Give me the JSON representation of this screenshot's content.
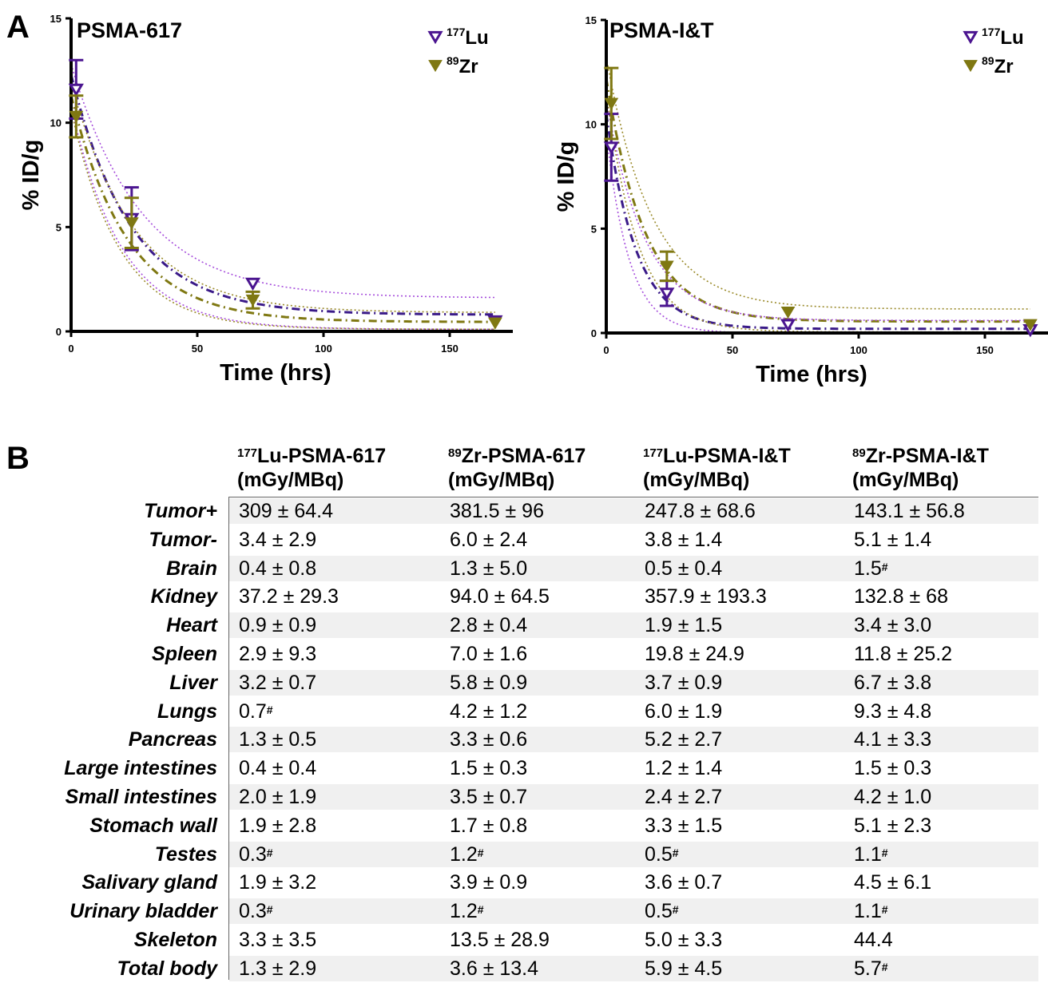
{
  "panels": {
    "a": "A",
    "b": "B"
  },
  "chart_data": [
    {
      "type": "scatter",
      "title": "PSMA-617",
      "xlabel": "Time (hrs)",
      "ylabel": "% ID/g",
      "xlim": [
        0,
        175
      ],
      "ylim": [
        0,
        15
      ],
      "xticks": [
        0,
        50,
        100,
        150
      ],
      "yticks": [
        0,
        5,
        10,
        15
      ],
      "legend_position": "top-right",
      "series": [
        {
          "name": "177Lu",
          "name_sup": "177",
          "name_main": "Lu",
          "marker": "open-down-triangle",
          "color": "#4b1590",
          "x": [
            2,
            24,
            72,
            168
          ],
          "y": [
            11.6,
            5.4,
            2.3,
            0.5
          ],
          "err": [
            1.4,
            1.5,
            0,
            0
          ]
        },
        {
          "name": "89Zr",
          "name_sup": "89",
          "name_main": "Zr",
          "marker": "filled-down-triangle",
          "color": "#7f7812",
          "x": [
            2,
            24,
            72,
            168
          ],
          "y": [
            10.3,
            5.2,
            1.5,
            0.4
          ],
          "err": [
            1.0,
            1.2,
            0.4,
            0
          ]
        }
      ],
      "fits": [
        {
          "series": "177Lu",
          "style": "dash-dot",
          "color": "#3a1a88",
          "y0": 12.3,
          "k": 0.042,
          "plateau": 0.8
        },
        {
          "series": "89Zr",
          "style": "dash-dot",
          "color": "#7f7812",
          "y0": 11.3,
          "k": 0.045,
          "plateau": 0.45
        },
        {
          "series": "177Lu",
          "style": "dotted-band",
          "color": "#a64ddc",
          "y0": 12.8,
          "k": 0.036,
          "plateau": 1.6
        },
        {
          "series": "177Lu",
          "style": "dotted-band",
          "color": "#a64ddc",
          "y0": 10.8,
          "k": 0.05,
          "plateau": 0.1
        },
        {
          "series": "89Zr",
          "style": "dotted-band",
          "color": "#9a8a2a",
          "y0": 11.9,
          "k": 0.04,
          "plateau": 0.9
        },
        {
          "series": "89Zr",
          "style": "dotted-band",
          "color": "#9a8a2a",
          "y0": 10.6,
          "k": 0.052,
          "plateau": 0.1
        }
      ]
    },
    {
      "type": "scatter",
      "title": "PSMA-I&T",
      "xlabel": "Time (hrs)",
      "ylabel": "% ID/g",
      "xlim": [
        0,
        175
      ],
      "ylim": [
        0,
        15
      ],
      "xticks": [
        0,
        50,
        100,
        150
      ],
      "yticks": [
        0,
        5,
        10,
        15
      ],
      "legend_position": "top-right",
      "series": [
        {
          "name": "177Lu",
          "name_sup": "177",
          "name_main": "Lu",
          "marker": "open-down-triangle",
          "color": "#4b1590",
          "x": [
            2,
            24,
            72,
            168
          ],
          "y": [
            8.9,
            1.9,
            0.4,
            0.15
          ],
          "err": [
            1.6,
            0.6,
            0,
            0
          ]
        },
        {
          "name": "89Zr",
          "name_sup": "89",
          "name_main": "Zr",
          "marker": "filled-down-triangle",
          "color": "#7f7812",
          "x": [
            2,
            24,
            72,
            168
          ],
          "y": [
            11.0,
            3.2,
            1.0,
            0.4
          ],
          "err": [
            1.7,
            0.7,
            0,
            0
          ]
        }
      ],
      "fits": [
        {
          "series": "177Lu",
          "style": "dash-dot",
          "color": "#3a1a88",
          "y0": 10.5,
          "k": 0.085,
          "plateau": 0.2
        },
        {
          "series": "89Zr",
          "style": "dash-dot",
          "color": "#7f7812",
          "y0": 12.2,
          "k": 0.065,
          "plateau": 0.55
        },
        {
          "series": "177Lu",
          "style": "dotted-band",
          "color": "#a64ddc",
          "y0": 11.2,
          "k": 0.065,
          "plateau": 0.6
        },
        {
          "series": "177Lu",
          "style": "dotted-band",
          "color": "#a64ddc",
          "y0": 9.6,
          "k": 0.11,
          "plateau": 0.0
        },
        {
          "series": "89Zr",
          "style": "dotted-band",
          "color": "#9a8a2a",
          "y0": 13.2,
          "k": 0.055,
          "plateau": 1.15
        },
        {
          "series": "89Zr",
          "style": "dotted-band",
          "color": "#9a8a2a",
          "y0": 11.6,
          "k": 0.08,
          "plateau": 0.05
        }
      ]
    }
  ],
  "table": {
    "headers": [
      {
        "sup": "177",
        "name": "Lu-PSMA-617",
        "unit": "(mGy/MBq)"
      },
      {
        "sup": "89",
        "name": "Zr-PSMA-617",
        "unit": "(mGy/MBq)"
      },
      {
        "sup": "177",
        "name": "Lu-PSMA-I&T",
        "unit": "(mGy/MBq)"
      },
      {
        "sup": "89",
        "name": "Zr-PSMA-I&T",
        "unit": "(mGy/MBq)"
      }
    ],
    "rows": [
      {
        "label": "Tumor+",
        "cells": [
          {
            "v": "309 ± 64.4"
          },
          {
            "v": "381.5 ± 96"
          },
          {
            "v": "247.8 ± 68.6"
          },
          {
            "v": "143.1 ± 56.8"
          }
        ]
      },
      {
        "label": "Tumor-",
        "cells": [
          {
            "v": "3.4 ± 2.9"
          },
          {
            "v": "6.0 ± 2.4"
          },
          {
            "v": "3.8 ± 1.4"
          },
          {
            "v": "5.1 ± 1.4"
          }
        ]
      },
      {
        "label": "Brain",
        "cells": [
          {
            "v": "0.4 ± 0.8"
          },
          {
            "v": "1.3 ± 5.0"
          },
          {
            "v": "0.5 ± 0.4"
          },
          {
            "v": "1.5",
            "sup": "#"
          }
        ]
      },
      {
        "label": "Kidney",
        "cells": [
          {
            "v": "37.2 ± 29.3"
          },
          {
            "v": "94.0 ± 64.5"
          },
          {
            "v": "357.9 ± 193.3"
          },
          {
            "v": "132.8 ± 68"
          }
        ]
      },
      {
        "label": "Heart",
        "cells": [
          {
            "v": "0.9 ± 0.9"
          },
          {
            "v": "2.8 ± 0.4"
          },
          {
            "v": "1.9 ± 1.5"
          },
          {
            "v": "3.4 ± 3.0"
          }
        ]
      },
      {
        "label": "Spleen",
        "cells": [
          {
            "v": "2.9 ± 9.3"
          },
          {
            "v": "7.0 ± 1.6"
          },
          {
            "v": "19.8 ± 24.9"
          },
          {
            "v": "11.8 ± 25.2"
          }
        ]
      },
      {
        "label": "Liver",
        "cells": [
          {
            "v": "3.2 ± 0.7"
          },
          {
            "v": "5.8 ± 0.9"
          },
          {
            "v": "3.7 ± 0.9"
          },
          {
            "v": "6.7 ± 3.8"
          }
        ]
      },
      {
        "label": "Lungs",
        "cells": [
          {
            "v": "0.7",
            "sup": "#"
          },
          {
            "v": "4.2 ± 1.2"
          },
          {
            "v": "6.0 ± 1.9"
          },
          {
            "v": "9.3 ± 4.8"
          }
        ]
      },
      {
        "label": "Pancreas",
        "cells": [
          {
            "v": "1.3 ± 0.5"
          },
          {
            "v": "3.3 ± 0.6"
          },
          {
            "v": "5.2 ± 2.7"
          },
          {
            "v": "4.1 ± 3.3"
          }
        ]
      },
      {
        "label": "Large intestines",
        "cells": [
          {
            "v": "0.4 ± 0.4"
          },
          {
            "v": "1.5 ± 0.3"
          },
          {
            "v": "1.2 ± 1.4"
          },
          {
            "v": "1.5 ± 0.3"
          }
        ]
      },
      {
        "label": "Small intestines",
        "cells": [
          {
            "v": "2.0 ± 1.9"
          },
          {
            "v": "3.5 ± 0.7"
          },
          {
            "v": "2.4 ± 2.7"
          },
          {
            "v": "4.2 ± 1.0"
          }
        ]
      },
      {
        "label": "Stomach wall",
        "cells": [
          {
            "v": "1.9 ± 2.8"
          },
          {
            "v": "1.7 ± 0.8"
          },
          {
            "v": "3.3 ± 1.5"
          },
          {
            "v": "5.1 ± 2.3"
          }
        ]
      },
      {
        "label": "Testes",
        "cells": [
          {
            "v": "0.3",
            "sup": "#"
          },
          {
            "v": "1.2",
            "sup": "#"
          },
          {
            "v": "0.5",
            "sup": "#"
          },
          {
            "v": "1.1",
            "sup": "#"
          }
        ]
      },
      {
        "label": "Salivary gland",
        "cells": [
          {
            "v": "1.9 ± 3.2"
          },
          {
            "v": "3.9 ± 0.9"
          },
          {
            "v": "3.6 ± 0.7"
          },
          {
            "v": "4.5 ± 6.1"
          }
        ]
      },
      {
        "label": "Urinary bladder",
        "cells": [
          {
            "v": "0.3",
            "sup": "#"
          },
          {
            "v": "1.2",
            "sup": "#"
          },
          {
            "v": "0.5",
            "sup": "#"
          },
          {
            "v": "1.1",
            "sup": "#"
          }
        ]
      },
      {
        "label": "Skeleton",
        "cells": [
          {
            "v": "3.3 ± 3.5"
          },
          {
            "v": "13.5 ± 28.9"
          },
          {
            "v": "5.0 ± 3.3"
          },
          {
            "v": "44.4"
          }
        ]
      },
      {
        "label": "Total body",
        "cells": [
          {
            "v": "1.3 ± 2.9"
          },
          {
            "v": "3.6 ± 13.4"
          },
          {
            "v": "5.9 ± 4.5"
          },
          {
            "v": "5.7",
            "sup": "#"
          }
        ]
      }
    ]
  }
}
